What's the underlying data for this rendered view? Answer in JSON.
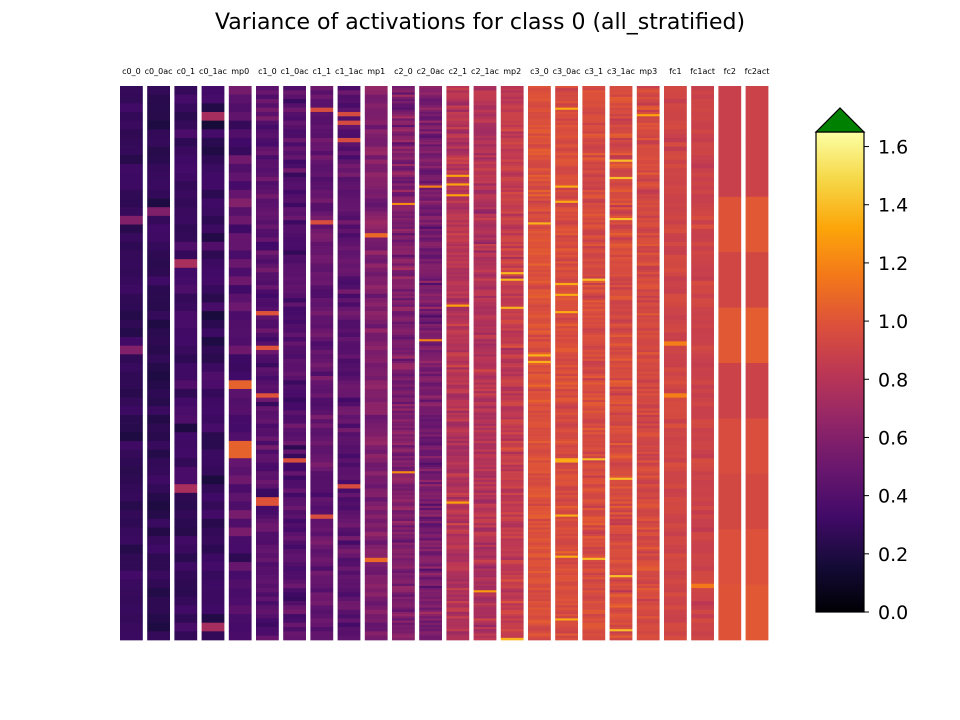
{
  "chart_data": {
    "type": "heatmap",
    "title": "Variance of activations for class 0 (all_stratified)",
    "columns": [
      {
        "label": "c0_0",
        "mean": 0.27,
        "spread": 0.1,
        "rows": 64
      },
      {
        "label": "c0_0ac",
        "mean": 0.26,
        "spread": 0.1,
        "rows": 64
      },
      {
        "label": "c0_1",
        "mean": 0.3,
        "spread": 0.14,
        "rows": 64
      },
      {
        "label": "c0_1ac",
        "mean": 0.29,
        "spread": 0.14,
        "rows": 64
      },
      {
        "label": "mp0",
        "mean": 0.42,
        "spread": 0.2,
        "rows": 64
      },
      {
        "label": "c1_0",
        "mean": 0.42,
        "spread": 0.18,
        "rows": 128
      },
      {
        "label": "c1_0ac",
        "mean": 0.4,
        "spread": 0.18,
        "rows": 128
      },
      {
        "label": "c1_1",
        "mean": 0.45,
        "spread": 0.16,
        "rows": 128
      },
      {
        "label": "c1_1ac",
        "mean": 0.44,
        "spread": 0.16,
        "rows": 128
      },
      {
        "label": "mp1",
        "mean": 0.58,
        "spread": 0.16,
        "rows": 128
      },
      {
        "label": "c2_0",
        "mean": 0.58,
        "spread": 0.2,
        "rows": 256
      },
      {
        "label": "c2_0ac",
        "mean": 0.55,
        "spread": 0.2,
        "rows": 256
      },
      {
        "label": "c2_1",
        "mean": 0.8,
        "spread": 0.16,
        "rows": 256
      },
      {
        "label": "c2_1ac",
        "mean": 0.78,
        "spread": 0.16,
        "rows": 256
      },
      {
        "label": "mp2",
        "mean": 0.86,
        "spread": 0.16,
        "rows": 256
      },
      {
        "label": "c3_0",
        "mean": 0.98,
        "spread": 0.12,
        "rows": 256
      },
      {
        "label": "c3_0ac",
        "mean": 0.96,
        "spread": 0.12,
        "rows": 256
      },
      {
        "label": "c3_1",
        "mean": 0.95,
        "spread": 0.14,
        "rows": 256
      },
      {
        "label": "c3_1ac",
        "mean": 0.95,
        "spread": 0.14,
        "rows": 256
      },
      {
        "label": "mp3",
        "mean": 0.94,
        "spread": 0.12,
        "rows": 256
      },
      {
        "label": "fc1",
        "mean": 0.92,
        "spread": 0.08,
        "rows": 128
      },
      {
        "label": "fc1act",
        "mean": 0.9,
        "spread": 0.08,
        "rows": 128
      },
      {
        "label": "fc2",
        "values": [
          0.88,
          0.88,
          1.0,
          0.92,
          1.02,
          0.9,
          0.96,
          0.93,
          0.98,
          1.0
        ]
      },
      {
        "label": "fc2act",
        "values": [
          0.9,
          0.9,
          1.02,
          0.93,
          1.04,
          0.9,
          0.97,
          0.94,
          0.99,
          1.02
        ]
      }
    ],
    "colorbar": {
      "colormap": "inferno",
      "range": [
        0.0,
        1.65
      ],
      "ticks": [
        "0.0",
        "0.2",
        "0.4",
        "0.6",
        "0.8",
        "1.0",
        "1.2",
        "1.4",
        "1.6"
      ],
      "tick_values": [
        0.0,
        0.2,
        0.4,
        0.6,
        0.8,
        1.0,
        1.2,
        1.4,
        1.6
      ],
      "extend": "max",
      "over_color": "#008000"
    },
    "grid": false,
    "legend": "colorbar-right"
  }
}
